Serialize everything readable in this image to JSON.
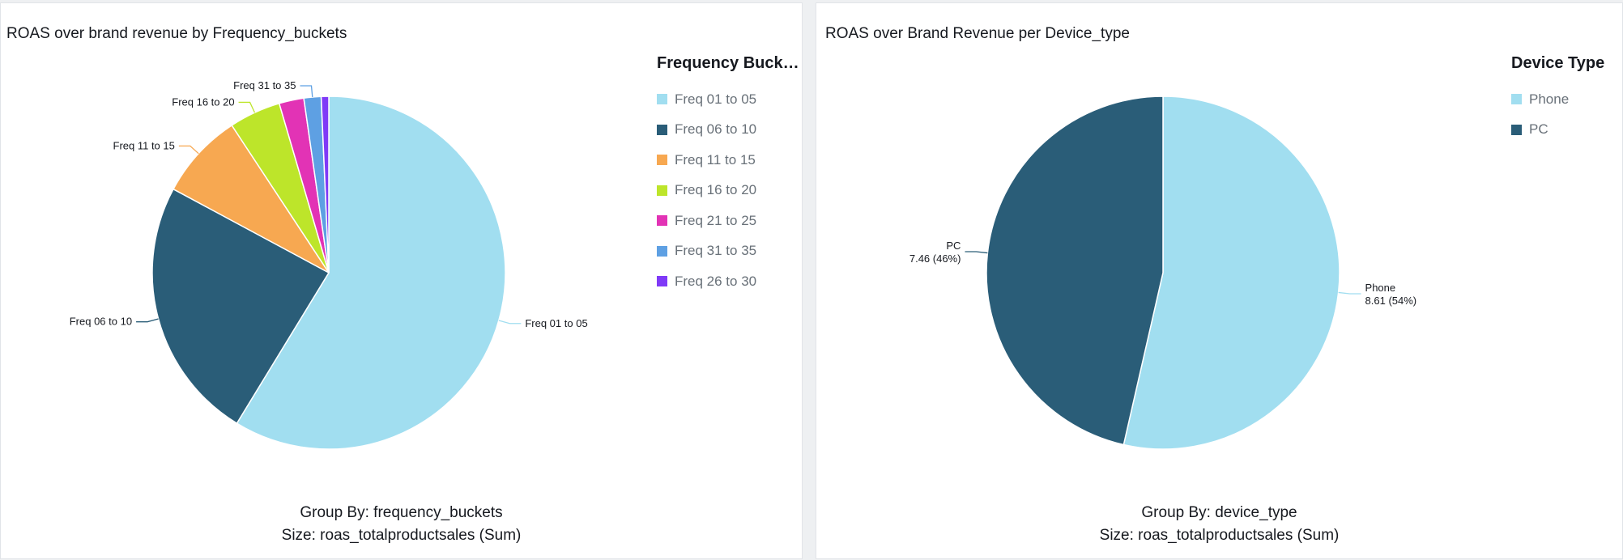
{
  "chart_data": [
    {
      "type": "pie",
      "title": "ROAS over brand revenue by Frequency_buckets",
      "legend_title": "Frequency Buck…",
      "legend_placement": "right",
      "labels": [
        "Freq 01 to 05",
        "Freq 06 to 10",
        "Freq 11 to 15",
        "Freq 16 to 20",
        "Freq 21 to 25",
        "Freq 31 to 35",
        "Freq 26 to 30"
      ],
      "values": [
        59.6,
        24.5,
        8.0,
        4.8,
        2.3,
        1.6,
        0.7
      ],
      "slice_labels": [
        "Freq 01 to 05",
        "Freq 06 to 10",
        "Freq 11 to 15",
        "Freq 16 to 20",
        "",
        "Freq 31 to 35",
        ""
      ],
      "colors": [
        "#a1def0",
        "#2a5d78",
        "#f7a851",
        "#bde52a",
        "#e233b5",
        "#5ea0e3",
        "#7f3af7"
      ],
      "footer": [
        "Group By: frequency_buckets",
        "Size: roas_totalproductsales (Sum)"
      ]
    },
    {
      "type": "pie",
      "title": "ROAS over Brand Revenue per Device_type",
      "legend_title": "Device Type",
      "legend_placement": "right",
      "labels": [
        "Phone",
        "PC"
      ],
      "values": [
        8.61,
        7.46
      ],
      "percents": [
        "54%",
        "46%"
      ],
      "slice_labels": [
        "Phone",
        "PC"
      ],
      "slice_values": [
        "8.61 (54%)",
        "7.46 (46%)"
      ],
      "colors": [
        "#a1def0",
        "#2a5d78"
      ],
      "footer": [
        "Group By: device_type",
        "Size: roas_totalproductsales (Sum)"
      ]
    }
  ]
}
